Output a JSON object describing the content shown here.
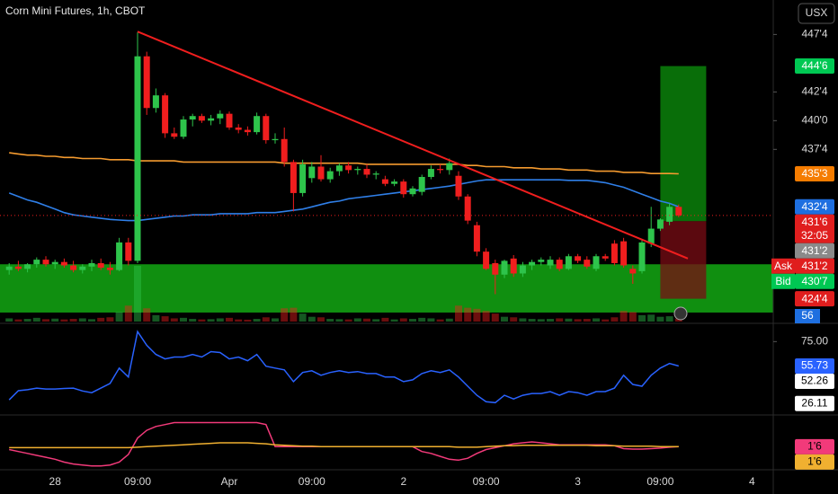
{
  "chart_data": {
    "type": "candlestick",
    "title": "Corn Mini Futures, 1h, CBOT",
    "currency": "USX",
    "up_color": "#2ec44b",
    "down_color": "#f01e1e",
    "categories": [
      null,
      null,
      null,
      null,
      null,
      "28",
      null,
      null,
      null,
      null,
      null,
      null,
      null,
      null,
      "09:00",
      null,
      null,
      null,
      null,
      null,
      null,
      null,
      null,
      null,
      "Apr",
      null,
      null,
      null,
      null,
      null,
      null,
      null,
      null,
      "09:00",
      null,
      null,
      null,
      null,
      null,
      null,
      null,
      null,
      null,
      "2",
      null,
      null,
      null,
      null,
      null,
      null,
      null,
      null,
      "09:00",
      null,
      null,
      null,
      null,
      null,
      null,
      null,
      null,
      null,
      "3",
      null,
      null,
      null,
      null,
      null,
      null,
      null,
      null,
      "09:00",
      null,
      null,
      null,
      null,
      null,
      null,
      null,
      null,
      null,
      "4"
    ],
    "open": [
      427.0,
      427.3,
      427.1,
      427.5,
      427.9,
      427.5,
      427.7,
      427.4,
      427.0,
      427.3,
      427.6,
      427.2,
      427.0,
      429.4,
      427.8,
      445.6,
      441.1,
      442.2,
      438.9,
      438.6,
      440.1,
      440.4,
      440.0,
      440.2,
      440.6,
      439.4,
      439.2,
      439.0,
      440.4,
      438.3,
      438.4,
      436.4,
      433.7,
      435.0,
      436.0,
      434.9,
      435.6,
      436.1,
      435.7,
      435.8,
      435.3,
      434.9,
      434.5,
      434.7,
      433.6,
      433.8,
      435.1,
      435.8,
      435.7,
      435.2,
      433.4,
      430.9,
      428.6,
      427.6,
      426.6,
      428.0,
      426.7,
      427.4,
      427.7,
      427.4,
      427.9,
      427.1,
      428.2,
      427.9,
      427.1,
      428.2,
      429.3,
      429.5,
      427.1,
      426.9,
      429.3,
      430.6,
      431.2,
      432.5,
      null,
      null,
      null,
      null,
      null,
      null,
      null,
      null
    ],
    "high": [
      427.6,
      427.8,
      427.6,
      428.1,
      428.2,
      427.9,
      428.0,
      427.8,
      427.5,
      427.9,
      428.0,
      427.7,
      429.8,
      429.8,
      447.7,
      446.0,
      442.8,
      442.4,
      439.4,
      440.4,
      440.6,
      440.6,
      440.5,
      440.9,
      440.8,
      439.7,
      439.5,
      440.7,
      440.6,
      438.9,
      439.4,
      436.6,
      436.6,
      436.4,
      437.0,
      435.9,
      436.3,
      436.4,
      436.0,
      436.2,
      435.6,
      435.2,
      434.9,
      434.9,
      434.3,
      435.3,
      436.1,
      436.2,
      436.7,
      435.6,
      433.6,
      431.2,
      428.9,
      427.9,
      427.9,
      428.3,
      427.7,
      427.9,
      428.1,
      428.2,
      428.1,
      428.4,
      428.4,
      428.2,
      428.4,
      428.4,
      429.6,
      429.8,
      427.4,
      429.6,
      432.5,
      431.5,
      432.8,
      432.7,
      null,
      null,
      null,
      null,
      null,
      null,
      null,
      null
    ],
    "low": [
      426.6,
      426.9,
      426.8,
      427.2,
      427.3,
      427.1,
      427.2,
      426.8,
      426.7,
      426.9,
      427.0,
      426.6,
      426.9,
      427.4,
      427.6,
      440.5,
      440.7,
      438.5,
      438.4,
      438.4,
      439.5,
      439.8,
      439.6,
      439.7,
      439.2,
      438.9,
      438.7,
      438.8,
      438.0,
      438.0,
      436.0,
      432.1,
      433.4,
      434.6,
      434.7,
      434.6,
      435.2,
      435.4,
      435.3,
      435.0,
      434.9,
      434.3,
      434.3,
      433.3,
      433.4,
      433.5,
      434.9,
      435.4,
      435.3,
      433.1,
      431.0,
      428.2,
      427.0,
      424.9,
      426.3,
      426.4,
      426.4,
      427.0,
      427.4,
      427.1,
      426.9,
      427.0,
      427.6,
      427.1,
      426.9,
      427.8,
      427.4,
      427.2,
      425.8,
      426.7,
      429.0,
      430.4,
      430.9,
      431.6,
      null,
      null,
      null,
      null,
      null,
      null,
      null,
      null
    ],
    "close": [
      427.3,
      427.1,
      427.5,
      427.9,
      427.5,
      427.7,
      427.4,
      427.0,
      427.3,
      427.6,
      427.2,
      427.0,
      429.4,
      427.8,
      445.6,
      441.1,
      442.2,
      438.9,
      438.6,
      440.1,
      440.4,
      440.0,
      440.2,
      440.6,
      439.4,
      439.2,
      439.0,
      440.4,
      438.3,
      438.4,
      436.4,
      433.7,
      436.2,
      436.0,
      434.9,
      435.6,
      436.1,
      435.7,
      435.8,
      435.3,
      435.4,
      434.5,
      434.7,
      433.6,
      434.1,
      435.1,
      435.8,
      435.7,
      436.3,
      433.4,
      431.3,
      428.6,
      427.1,
      426.6,
      427.8,
      426.7,
      427.4,
      427.7,
      427.9,
      427.9,
      427.1,
      428.2,
      427.8,
      427.3,
      428.2,
      428.0,
      427.6,
      427.4,
      426.7,
      429.4,
      430.6,
      431.4,
      432.5,
      431.75,
      null,
      null,
      null,
      null,
      null,
      null,
      null,
      null
    ],
    "volume": [
      60,
      40,
      50,
      70,
      45,
      55,
      40,
      50,
      60,
      45,
      70,
      80,
      180,
      300,
      1050,
      250,
      120,
      100,
      60,
      70,
      50,
      40,
      45,
      60,
      70,
      40,
      35,
      50,
      80,
      60,
      250,
      260,
      150,
      90,
      80,
      50,
      45,
      40,
      60,
      55,
      45,
      70,
      40,
      60,
      50,
      70,
      60,
      40,
      55,
      300,
      260,
      240,
      200,
      150,
      90,
      80,
      60,
      50,
      45,
      50,
      60,
      55,
      45,
      50,
      60,
      40,
      80,
      200,
      180,
      120,
      130,
      90,
      100,
      56,
      null,
      null,
      null,
      null,
      null,
      null,
      null,
      null
    ],
    "volume_label_color": "#1e6fe0",
    "ylim": [
      422.75,
      450.5
    ],
    "yticks": [
      {
        "value": 447.5,
        "label": "447'4"
      },
      {
        "value": 442.5,
        "label": "442'4"
      },
      {
        "value": 440,
        "label": "440'0"
      },
      {
        "value": 437.5,
        "label": "437'4"
      }
    ],
    "grid": false,
    "moving_averages": [
      {
        "color": "#f59b2f",
        "values": [
          437.2,
          437.1,
          437.0,
          437.0,
          436.9,
          436.9,
          436.8,
          436.8,
          436.7,
          436.7,
          436.7,
          436.6,
          436.6,
          436.6,
          436.5,
          436.5,
          436.5,
          436.5,
          436.5,
          436.4,
          436.4,
          436.4,
          436.4,
          436.4,
          436.4,
          436.4,
          436.4,
          436.4,
          436.4,
          436.4,
          436.3,
          436.3,
          436.3,
          436.3,
          436.3,
          436.3,
          436.3,
          436.3,
          436.3,
          436.2,
          436.2,
          436.2,
          436.2,
          436.2,
          436.2,
          436.2,
          436.2,
          436.2,
          436.2,
          436.2,
          436.1,
          436.1,
          436.0,
          436.0,
          436.0,
          435.9,
          435.9,
          435.9,
          435.8,
          435.8,
          435.8,
          435.7,
          435.7,
          435.7,
          435.6,
          435.6,
          435.6,
          435.5,
          435.5,
          435.5,
          435.4,
          435.4,
          435.4,
          435.375,
          null,
          null,
          null,
          null,
          null,
          null,
          null,
          null
        ]
      },
      {
        "color": "#2f7fe8",
        "values": [
          433.7,
          433.4,
          433.1,
          432.9,
          432.6,
          432.3,
          432.0,
          431.8,
          431.7,
          431.6,
          431.5,
          431.4,
          431.35,
          431.3,
          431.3,
          431.4,
          431.5,
          431.6,
          431.7,
          431.7,
          431.8,
          431.8,
          431.8,
          431.9,
          431.9,
          431.9,
          431.9,
          432.0,
          432.0,
          432.0,
          432.1,
          432.2,
          432.3,
          432.5,
          432.7,
          432.9,
          433.0,
          433.2,
          433.3,
          433.4,
          433.5,
          433.6,
          433.7,
          433.8,
          433.9,
          434.0,
          434.1,
          434.2,
          434.3,
          434.45,
          434.6,
          434.75,
          434.85,
          434.85,
          434.85,
          434.85,
          434.85,
          434.85,
          434.85,
          434.85,
          434.85,
          434.8,
          434.8,
          434.8,
          434.7,
          434.6,
          434.4,
          434.2,
          433.9,
          433.6,
          433.3,
          433.0,
          432.8,
          432.5,
          null,
          null,
          null,
          null,
          null,
          null,
          null,
          null
        ]
      }
    ],
    "zone": {
      "top": 427.5,
      "bottom": 423.3,
      "color": "#13a813"
    },
    "trendline": {
      "color": "#f01e1e",
      "x": [
        14,
        74
      ],
      "y": [
        447.75,
        428.0
      ]
    },
    "position": {
      "start": 71,
      "end": 76,
      "entry": 431.25,
      "target": 444.75,
      "stop": 424.5,
      "profit_color": "#0a7a0a",
      "loss_color": "#7a0c14"
    },
    "price_labels": [
      {
        "value": 444.75,
        "label": "444'6",
        "color": "#00c853"
      },
      {
        "value": 435.375,
        "label": "435'3",
        "color": "#f57c00"
      },
      {
        "value": 432.5,
        "label": "432'4",
        "color": "#1e6fe0"
      },
      {
        "value": 431.75,
        "label": "431'6",
        "sublabel": "32:05",
        "color": "#e01e1e"
      },
      {
        "value": 431.25,
        "label": "431'2",
        "color": "#8a8a8a"
      },
      {
        "prefix": "Ask",
        "value": 431.25,
        "label": "431'2",
        "color": "#e01e1e"
      },
      {
        "prefix": "Bid",
        "value": 430.875,
        "label": "430'7",
        "color": "#00c853"
      },
      {
        "value": 424.5,
        "label": "424'4",
        "color": "#e01e1e"
      }
    ],
    "indicators": [
      {
        "ylim": [
          18.5,
          88
        ],
        "yticks": [
          {
            "value": 75,
            "label": "75.00"
          }
        ],
        "levels": [
          52.26,
          26.11
        ],
        "series": [
          {
            "color": "#2962ff",
            "values": [
              29.0,
              36.2,
              37.0,
              38.3,
              37.6,
              37.6,
              38.0,
              38.3,
              36.0,
              34.7,
              38.3,
              42.0,
              54.1,
              47.0,
              82.9,
              72.1,
              64.9,
              61.3,
              62.8,
              62.8,
              64.9,
              62.8,
              67.1,
              66.4,
              61.3,
              62.8,
              59.9,
              64.9,
              55.6,
              54.1,
              52.7,
              43.4,
              50.6,
              52.0,
              48.4,
              50.6,
              52.0,
              50.6,
              51.3,
              49.8,
              49.8,
              47.0,
              47.0,
              43.4,
              44.8,
              49.8,
              52.0,
              50.6,
              52.7,
              47.0,
              39.8,
              32.6,
              27.5,
              26.8,
              32.6,
              29.7,
              32.6,
              34.0,
              34.0,
              35.5,
              32.6,
              35.5,
              34.7,
              32.6,
              35.5,
              35.5,
              38.3,
              48.4,
              41.2,
              39.8,
              48.4,
              54.1,
              57.7,
              55.73,
              null,
              null,
              null,
              null,
              null,
              null,
              null,
              null
            ]
          }
        ]
      },
      {
        "ylim": [
          -0.55,
          4.95
        ],
        "series": [
          {
            "color": "#f23a7a",
            "last_label": "1'6",
            "values": [
              1.45,
              1.25,
              1.05,
              0.85,
              0.65,
              0.45,
              0.15,
              -0.05,
              -0.15,
              -0.25,
              -0.25,
              -0.15,
              0.15,
              0.95,
              2.65,
              3.45,
              3.85,
              4.05,
              4.25,
              4.25,
              4.25,
              4.25,
              4.25,
              4.25,
              4.25,
              4.25,
              4.25,
              4.25,
              4.05,
              1.75,
              1.75,
              1.75,
              1.75,
              1.75,
              1.75,
              1.75,
              1.75,
              1.75,
              1.75,
              1.75,
              1.75,
              1.75,
              1.75,
              1.75,
              1.75,
              1.25,
              1.05,
              0.75,
              0.45,
              0.35,
              0.55,
              1.05,
              1.45,
              1.65,
              1.85,
              2.05,
              2.15,
              2.25,
              2.15,
              2.05,
              1.95,
              1.95,
              1.95,
              1.95,
              1.95,
              1.95,
              1.85,
              1.55,
              1.5,
              1.5,
              1.55,
              1.6,
              1.7,
              1.75,
              null,
              null,
              null,
              null,
              null,
              null,
              null,
              null
            ]
          },
          {
            "color": "#f0b030",
            "last_label": "1'6",
            "values": [
              1.65,
              1.65,
              1.65,
              1.65,
              1.65,
              1.65,
              1.65,
              1.65,
              1.65,
              1.65,
              1.65,
              1.65,
              1.65,
              1.65,
              1.7,
              1.75,
              1.8,
              1.85,
              1.9,
              1.95,
              2.0,
              2.05,
              2.1,
              2.15,
              2.15,
              2.15,
              2.15,
              2.1,
              2.05,
              1.95,
              1.9,
              1.85,
              1.8,
              1.8,
              1.75,
              1.75,
              1.75,
              1.75,
              1.75,
              1.75,
              1.75,
              1.75,
              1.75,
              1.75,
              1.75,
              1.75,
              1.75,
              1.75,
              1.75,
              1.7,
              1.7,
              1.7,
              1.75,
              1.8,
              1.85,
              1.85,
              1.9,
              1.9,
              1.9,
              1.9,
              1.9,
              1.9,
              1.9,
              1.9,
              1.85,
              1.85,
              1.85,
              1.8,
              1.8,
              1.8,
              1.8,
              1.75,
              1.75,
              1.75,
              null,
              null,
              null,
              null,
              null,
              null,
              null,
              null
            ]
          }
        ]
      }
    ]
  }
}
